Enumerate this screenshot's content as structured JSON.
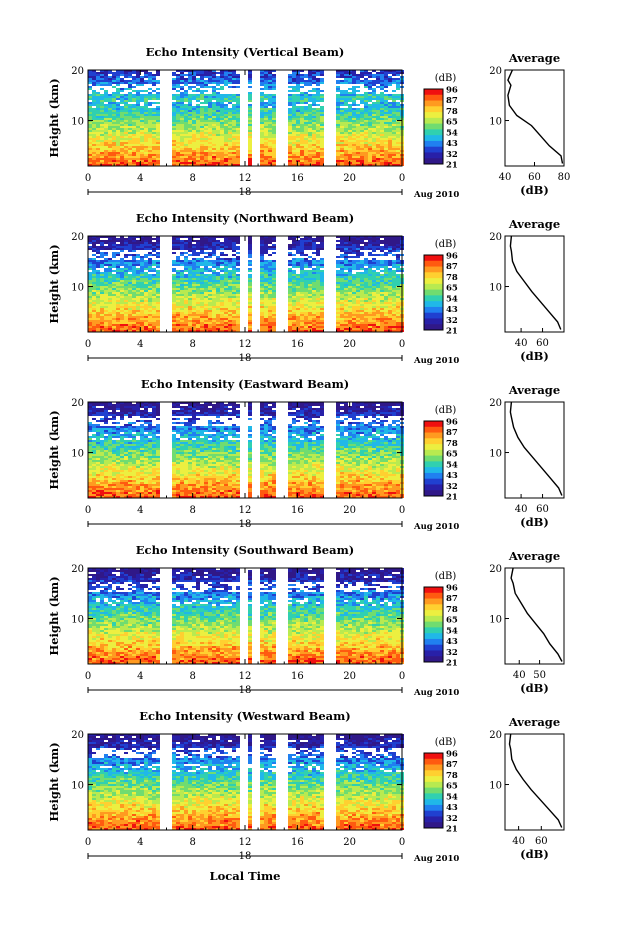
{
  "figure": {
    "xlabel": "Local Time",
    "date_note": "Aug 2010",
    "day_label": "18"
  },
  "colorbar": {
    "unit": "(dB)",
    "ticks": [
      "96",
      "87",
      "78",
      "65",
      "54",
      "43",
      "32",
      "21"
    ],
    "colors": [
      "#f01010",
      "#ff5a10",
      "#ff9a20",
      "#ffd030",
      "#ecef40",
      "#b8ea50",
      "#70dc70",
      "#30d0b0",
      "#20b8e8",
      "#2080f0",
      "#2040d0",
      "#2820a8",
      "#301888"
    ]
  },
  "chart_data": [
    {
      "type": "heatmap",
      "title": "Echo Intensity (Vertical Beam)",
      "ylabel": "Height (km)",
      "x_ticks": [
        "0",
        "4",
        "8",
        "12",
        "16",
        "20",
        "0"
      ],
      "y_ticks": [
        "20",
        "10"
      ],
      "xlim": [
        0,
        24
      ],
      "ylim": [
        1,
        20
      ],
      "gaps_hours": [
        [
          5.5,
          6.2
        ],
        [
          11.6,
          12.0
        ],
        [
          12.4,
          13.0
        ],
        [
          14.2,
          15.0
        ],
        [
          18.0,
          18.8
        ]
      ],
      "average_profile": {
        "title": "Average",
        "xlabel": "(dB)",
        "x_ticks": [
          "40",
          "60",
          "80"
        ],
        "y_ticks": [
          "20",
          "10"
        ],
        "xlim": [
          40,
          80
        ],
        "height_km": [
          1.5,
          3,
          5,
          7,
          9,
          11,
          13,
          15,
          17,
          18,
          20
        ],
        "db": [
          79,
          78,
          70,
          64,
          58,
          48,
          43,
          42,
          44,
          42,
          45
        ]
      }
    },
    {
      "type": "heatmap",
      "title": "Echo Intensity (Northward Beam)",
      "ylabel": "Height (km)",
      "x_ticks": [
        "0",
        "4",
        "8",
        "12",
        "16",
        "20",
        "0"
      ],
      "y_ticks": [
        "20",
        "10"
      ],
      "xlim": [
        0,
        24
      ],
      "ylim": [
        1,
        20
      ],
      "gaps_hours": [
        [
          5.5,
          6.2
        ],
        [
          11.6,
          12.0
        ],
        [
          12.4,
          13.0
        ],
        [
          14.2,
          15.0
        ],
        [
          18.0,
          18.8
        ]
      ],
      "average_profile": {
        "title": "Average",
        "xlabel": "(dB)",
        "x_ticks": [
          "40",
          "60"
        ],
        "y_ticks": [
          "20",
          "10"
        ],
        "xlim": [
          25,
          80
        ],
        "height_km": [
          1.5,
          3,
          5,
          7,
          9,
          11,
          13,
          15,
          17,
          18,
          20
        ],
        "db": [
          77,
          74,
          66,
          58,
          50,
          43,
          36,
          32,
          31,
          30,
          31
        ]
      }
    },
    {
      "type": "heatmap",
      "title": "Echo Intensity (Eastward Beam)",
      "ylabel": "Height (km)",
      "x_ticks": [
        "0",
        "4",
        "8",
        "12",
        "16",
        "20",
        "0"
      ],
      "y_ticks": [
        "20",
        "10"
      ],
      "xlim": [
        0,
        24
      ],
      "ylim": [
        1,
        20
      ],
      "gaps_hours": [
        [
          5.5,
          6.2
        ],
        [
          11.6,
          12.0
        ],
        [
          12.4,
          13.0
        ],
        [
          14.2,
          15.0
        ],
        [
          18.0,
          18.8
        ]
      ],
      "average_profile": {
        "title": "Average",
        "xlabel": "(dB)",
        "x_ticks": [
          "40",
          "60"
        ],
        "y_ticks": [
          "20",
          "10"
        ],
        "xlim": [
          25,
          80
        ],
        "height_km": [
          1.5,
          3,
          5,
          7,
          9,
          11,
          13,
          15,
          17,
          18,
          20
        ],
        "db": [
          78,
          75,
          67,
          59,
          51,
          43,
          37,
          33,
          31,
          30,
          31
        ]
      }
    },
    {
      "type": "heatmap",
      "title": "Echo Intensity (Southward Beam)",
      "ylabel": "Height (km)",
      "x_ticks": [
        "0",
        "4",
        "8",
        "12",
        "16",
        "20",
        "0"
      ],
      "y_ticks": [
        "20",
        "10"
      ],
      "xlim": [
        0,
        24
      ],
      "ylim": [
        1,
        20
      ],
      "gaps_hours": [
        [
          5.5,
          6.2
        ],
        [
          11.6,
          12.0
        ],
        [
          12.4,
          13.0
        ],
        [
          14.2,
          15.0
        ],
        [
          18.0,
          18.8
        ]
      ],
      "average_profile": {
        "title": "Average",
        "xlabel": "(dB)",
        "x_ticks": [
          "40",
          "50"
        ],
        "y_ticks": [
          "20",
          "10"
        ],
        "xlim": [
          33,
          62
        ],
        "height_km": [
          1.5,
          3,
          5,
          7,
          9,
          11,
          13,
          15,
          17,
          18,
          20
        ],
        "db": [
          61,
          59,
          55,
          52,
          48,
          44,
          41,
          38,
          37,
          36,
          37
        ]
      }
    },
    {
      "type": "heatmap",
      "title": "Echo Intensity (Westward Beam)",
      "ylabel": "Height (km)",
      "x_ticks": [
        "0",
        "4",
        "8",
        "12",
        "16",
        "20",
        "0"
      ],
      "y_ticks": [
        "20",
        "10"
      ],
      "xlim": [
        0,
        24
      ],
      "ylim": [
        1,
        20
      ],
      "gaps_hours": [
        [
          5.5,
          6.2
        ],
        [
          11.6,
          12.0
        ],
        [
          12.4,
          13.0
        ],
        [
          14.2,
          15.0
        ],
        [
          18.0,
          18.8
        ]
      ],
      "average_profile": {
        "title": "Average",
        "xlabel": "(dB)",
        "x_ticks": [
          "40",
          "60"
        ],
        "y_ticks": [
          "20",
          "10"
        ],
        "xlim": [
          28,
          80
        ],
        "height_km": [
          1.5,
          3,
          5,
          7,
          9,
          11,
          13,
          15,
          17,
          18,
          20
        ],
        "db": [
          78,
          75,
          67,
          59,
          51,
          44,
          38,
          34,
          33,
          32,
          33
        ]
      }
    }
  ]
}
